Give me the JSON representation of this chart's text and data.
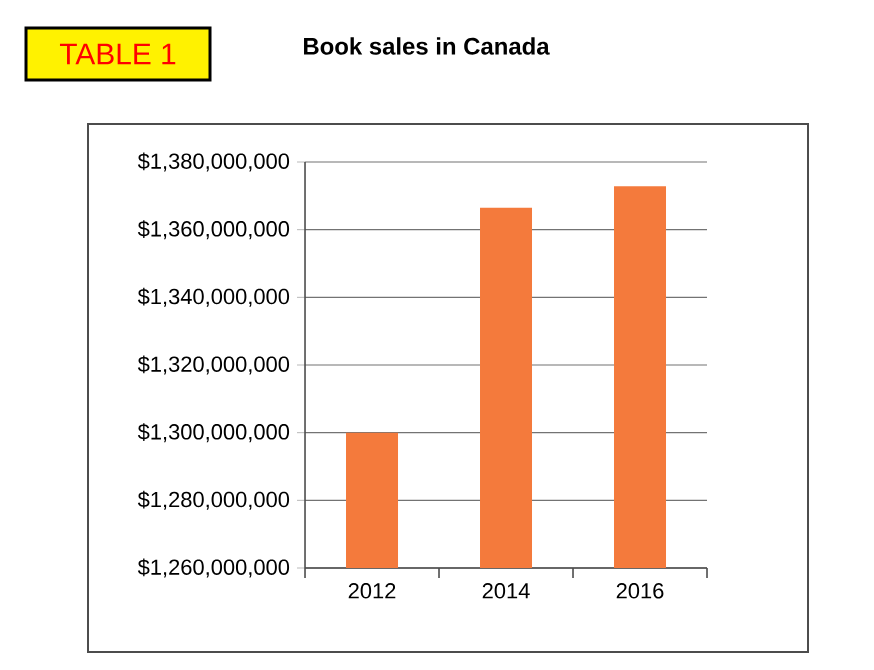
{
  "chart_data": {
    "type": "bar",
    "title": "Book sales in Canada",
    "annotations": [
      "TABLE 1"
    ],
    "categories": [
      "2012",
      "2014",
      "2016"
    ],
    "values": [
      1300000000,
      1366500000,
      1372800000
    ],
    "color": "#f47a3c",
    "ylim": [
      1260000000,
      1380000000
    ],
    "yticks": [
      {
        "value": 1260000000,
        "label": "$1,260,000,000"
      },
      {
        "value": 1280000000,
        "label": "$1,280,000,000"
      },
      {
        "value": 1300000000,
        "label": "$1,300,000,000"
      },
      {
        "value": 1320000000,
        "label": "$1,320,000,000"
      },
      {
        "value": 1340000000,
        "label": "$1,340,000,000"
      },
      {
        "value": 1360000000,
        "label": "$1,360,000,000"
      },
      {
        "value": 1380000000,
        "label": "$1,380,000,000"
      }
    ],
    "grid": "y"
  }
}
